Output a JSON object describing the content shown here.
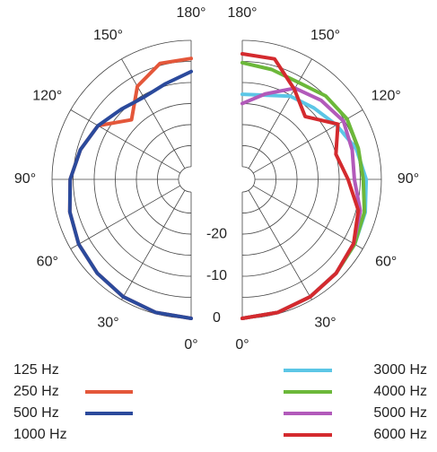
{
  "chart_data": {
    "type": "polar-halves",
    "theta": [
      0,
      15,
      30,
      45,
      60,
      75,
      90,
      105,
      120,
      135,
      150,
      165,
      180
    ],
    "theta_ticks": [
      {
        "value": 0,
        "label": "0°"
      },
      {
        "value": 30,
        "label": "30°"
      },
      {
        "value": 60,
        "label": "60°"
      },
      {
        "value": 90,
        "label": "90°"
      },
      {
        "value": 120,
        "label": "120°"
      },
      {
        "value": 150,
        "label": "150°"
      },
      {
        "value": 180,
        "label": "180°"
      }
    ],
    "rlim": [
      -33,
      0
    ],
    "rticks": [
      -20,
      -10,
      0
    ],
    "rgrid": [
      -30,
      -25,
      -20,
      -15,
      -10,
      -5,
      0
    ],
    "series": [
      {
        "name": "125 Hz",
        "side": "left"
      },
      {
        "name": "250 Hz",
        "side": "left",
        "color": "#e4573a",
        "values": [
          0,
          -0.3,
          -0.8,
          -1.5,
          -2.2,
          -3.2,
          -4.3,
          -5.8,
          -7.5,
          -13,
          -7.5,
          -4.5,
          -4.3
        ]
      },
      {
        "name": "500 Hz",
        "side": "left",
        "color": "#2b4a9c",
        "values": [
          0,
          -0.3,
          -0.8,
          -1.5,
          -2.2,
          -3.2,
          -4.3,
          -5.8,
          -7.5,
          -9.5,
          -10.5,
          -9.5,
          -7.4
        ]
      },
      {
        "name": "1000 Hz",
        "side": "left"
      },
      {
        "name": "3000 Hz",
        "side": "right",
        "color": "#5cc6e6",
        "values": [
          0,
          -0.3,
          -0.8,
          -1.5,
          -2.2,
          -2.8,
          -3.6,
          -5,
          -7.2,
          -9,
          -10.2,
          -12.3,
          -12.8
        ]
      },
      {
        "name": "4000 Hz",
        "side": "right",
        "color": "#6cb83a",
        "values": [
          0,
          -0.3,
          -0.8,
          -1.5,
          -2.2,
          -3,
          -4.3,
          -4.5,
          -4.3,
          -5,
          -6.4,
          -6,
          -5.3
        ]
      },
      {
        "name": "5000 Hz",
        "side": "right",
        "color": "#b25aba",
        "values": [
          0,
          -0.3,
          -0.8,
          -1.5,
          -2.5,
          -4,
          -6.4,
          -6,
          -5.3,
          -6.5,
          -8,
          -12,
          -15
        ]
      },
      {
        "name": "6000 Hz",
        "side": "right",
        "color": "#d42a2e",
        "values": [
          0,
          -0.3,
          -0.8,
          -1.5,
          -2.5,
          -4.5,
          -7.9,
          -10,
          -6.8,
          -11.9,
          -8.3,
          -3.4,
          -3.2
        ]
      }
    ]
  }
}
